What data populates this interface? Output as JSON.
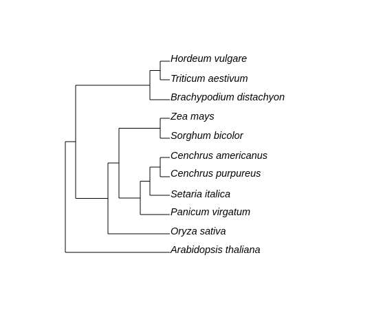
{
  "tree": {
    "type": "phylogenetic-tree",
    "orientation": "rightwards",
    "branch_color": "#000000",
    "label_color": "#000000",
    "taxa": [
      "Hordeum vulgare",
      "Triticum aestivum",
      "Brachypodium distachyon",
      "Zea mays",
      "Sorghum bicolor",
      "Cenchrus americanus",
      "Cenchrus purpureus",
      "Setaria italica",
      "Panicum virgatum",
      "Oryza sativa",
      "Arabidopsis thaliana"
    ],
    "newick": "((((Hordeum vulgare,Triticum aestivum),Brachypodium distachyon),(((Zea mays,Sorghum bicolor),(((Cenchrus americanus,Cenchrus purpureus),Setaria italica),Panicum virgatum)),Oryza sativa)),Arabidopsis thaliana);"
  }
}
